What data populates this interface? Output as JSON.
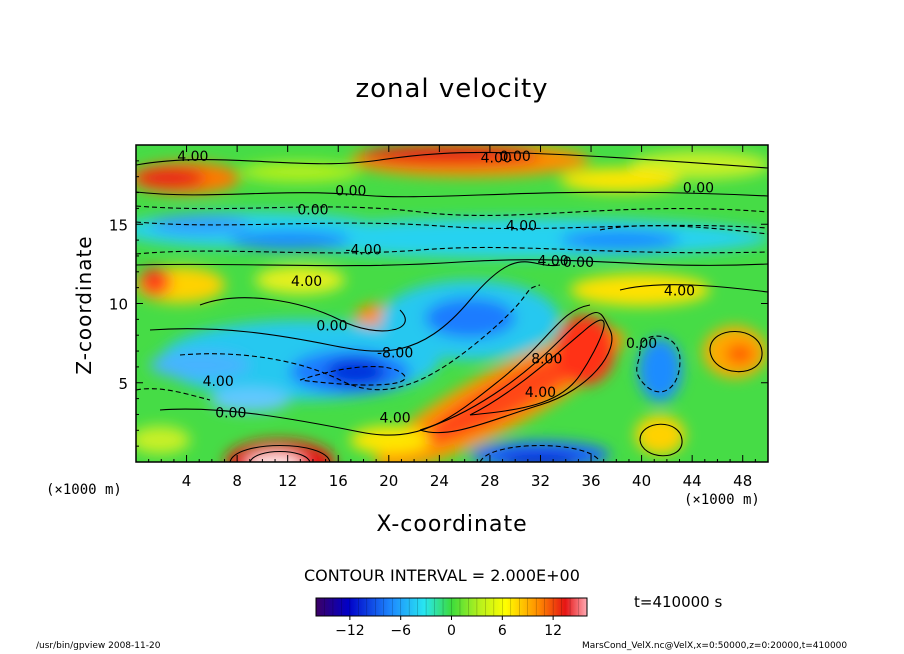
{
  "chart_data": {
    "type": "heatmap",
    "title": "zonal velocity",
    "xlabel": "X-coordinate",
    "ylabel": "Z-coordinate",
    "x_unit": "(×1000 m)",
    "xlim": [
      0,
      50
    ],
    "ylim": [
      0,
      20
    ],
    "x_ticks": [
      4,
      8,
      12,
      16,
      20,
      24,
      28,
      32,
      36,
      40,
      44,
      48
    ],
    "y_ticks": [
      5,
      10,
      15
    ],
    "contour_interval": "CONTOUR INTERVAL = 2.000E+00",
    "colorbar": {
      "min": -16,
      "max": 16,
      "ticks": [
        -12,
        -6,
        0,
        6,
        12
      ]
    },
    "contour_labels": [
      {
        "x": 4.5,
        "z": 19.0,
        "text": "4.00"
      },
      {
        "x": 28.5,
        "z": 18.9,
        "text": "4.00"
      },
      {
        "x": 30.0,
        "z": 19.0,
        "text": "0.00"
      },
      {
        "x": 17.0,
        "z": 16.8,
        "text": "0.00"
      },
      {
        "x": 44.5,
        "z": 17.0,
        "text": "0.00"
      },
      {
        "x": 14.0,
        "z": 15.6,
        "text": "0.00"
      },
      {
        "x": 30.5,
        "z": 14.6,
        "text": "4.00"
      },
      {
        "x": 18.0,
        "z": 13.1,
        "text": "-4.00"
      },
      {
        "x": 33.0,
        "z": 12.4,
        "text": "4.00"
      },
      {
        "x": 35.0,
        "z": 12.3,
        "text": "0.00"
      },
      {
        "x": 13.5,
        "z": 11.1,
        "text": "4.00"
      },
      {
        "x": 43.0,
        "z": 10.5,
        "text": "4.00"
      },
      {
        "x": 15.5,
        "z": 8.3,
        "text": "0.00"
      },
      {
        "x": 20.5,
        "z": 6.6,
        "text": "-8.00"
      },
      {
        "x": 32.5,
        "z": 6.2,
        "text": "8.00"
      },
      {
        "x": 40.0,
        "z": 7.2,
        "text": "0.00"
      },
      {
        "x": 6.5,
        "z": 4.8,
        "text": "4.00"
      },
      {
        "x": 32.0,
        "z": 4.1,
        "text": "4.00"
      },
      {
        "x": 7.5,
        "z": 2.8,
        "text": "0.00"
      },
      {
        "x": 20.5,
        "z": 2.5,
        "text": "4.00"
      }
    ]
  },
  "time_label": "t=410000 s",
  "footer_left": "/usr/bin/gpview   2008-11-20",
  "footer_right": "MarsCond_VelX.nc@VelX,x=0:50000,z=0:20000,t=410000"
}
